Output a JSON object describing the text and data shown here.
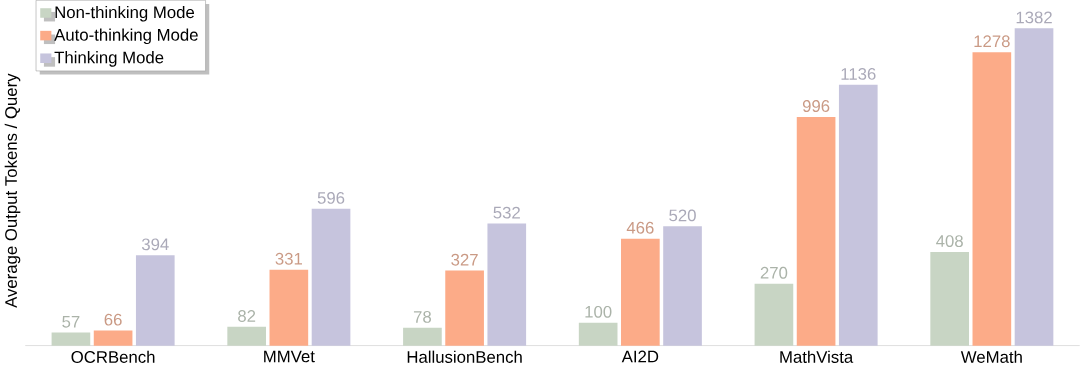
{
  "chart_data": {
    "type": "bar",
    "ylabel": "Average Output Tokens / Query",
    "categories": [
      "OCRBench",
      "MMVet",
      "HallusionBench",
      "AI2D",
      "MathVista",
      "WeMath"
    ],
    "series": [
      {
        "name": "Non-thinking Mode",
        "color": "#c8d5c4",
        "values": [
          57,
          82,
          78,
          100,
          270,
          408
        ]
      },
      {
        "name": "Auto-thinking Mode",
        "color": "#fcab88",
        "values": [
          66,
          331,
          327,
          466,
          996,
          1278
        ]
      },
      {
        "name": "Thinking Mode",
        "color": "#c6c4dd",
        "values": [
          394,
          596,
          532,
          520,
          1136,
          1382
        ]
      }
    ],
    "data_labels": true,
    "legend": "top left"
  }
}
